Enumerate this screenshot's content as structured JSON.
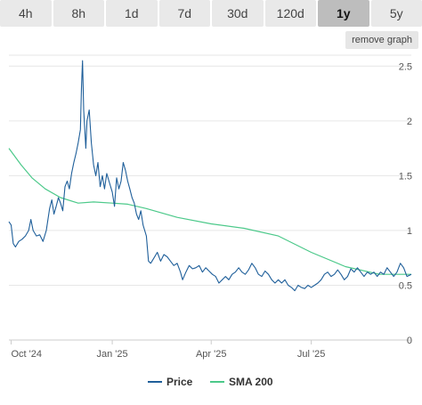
{
  "tabs": [
    {
      "label": "4h",
      "active": false
    },
    {
      "label": "8h",
      "active": false
    },
    {
      "label": "1d",
      "active": false
    },
    {
      "label": "7d",
      "active": false
    },
    {
      "label": "30d",
      "active": false
    },
    {
      "label": "120d",
      "active": false
    },
    {
      "label": "1y",
      "active": true
    },
    {
      "label": "5y",
      "active": false
    }
  ],
  "remove_graph_label": "remove graph",
  "chart_data": {
    "type": "line",
    "xlim": [
      "2024-09-29",
      "2025-09-30"
    ],
    "ylim": [
      0,
      2.6
    ],
    "y_ticks": [
      0,
      0.5,
      1,
      1.5,
      2,
      2.5
    ],
    "y_tick_labels": [
      "0",
      "0.5",
      "1",
      "1.5",
      "2",
      "2.5"
    ],
    "x_ticks": [
      {
        "date": "2024-10-01",
        "label": "Oct '24"
      },
      {
        "date": "2025-01-01",
        "label": "Jan '25"
      },
      {
        "date": "2025-04-01",
        "label": "Apr '25"
      },
      {
        "date": "2025-07-01",
        "label": "Jul '25"
      }
    ],
    "grid": true,
    "legend_position": "bottom-center",
    "series": [
      {
        "name": "Price",
        "color": "#1f5f9a",
        "points": [
          [
            "2024-09-29",
            1.08
          ],
          [
            "2024-10-01",
            1.05
          ],
          [
            "2024-10-03",
            0.88
          ],
          [
            "2024-10-05",
            0.85
          ],
          [
            "2024-10-08",
            0.9
          ],
          [
            "2024-10-11",
            0.92
          ],
          [
            "2024-10-14",
            0.95
          ],
          [
            "2024-10-17",
            1.0
          ],
          [
            "2024-10-19",
            1.1
          ],
          [
            "2024-10-21",
            1.0
          ],
          [
            "2024-10-24",
            0.95
          ],
          [
            "2024-10-27",
            0.96
          ],
          [
            "2024-10-30",
            0.9
          ],
          [
            "2024-11-02",
            1.0
          ],
          [
            "2024-11-05",
            1.2
          ],
          [
            "2024-11-07",
            1.28
          ],
          [
            "2024-11-09",
            1.15
          ],
          [
            "2024-11-11",
            1.22
          ],
          [
            "2024-11-13",
            1.3
          ],
          [
            "2024-11-15",
            1.25
          ],
          [
            "2024-11-17",
            1.18
          ],
          [
            "2024-11-19",
            1.4
          ],
          [
            "2024-11-21",
            1.45
          ],
          [
            "2024-11-23",
            1.38
          ],
          [
            "2024-11-25",
            1.52
          ],
          [
            "2024-11-27",
            1.62
          ],
          [
            "2024-11-29",
            1.7
          ],
          [
            "2024-12-01",
            1.8
          ],
          [
            "2024-12-03",
            1.92
          ],
          [
            "2024-12-04",
            2.3
          ],
          [
            "2024-12-05",
            2.55
          ],
          [
            "2024-12-06",
            2.1
          ],
          [
            "2024-12-08",
            1.75
          ],
          [
            "2024-12-09",
            2.0
          ],
          [
            "2024-12-11",
            2.1
          ],
          [
            "2024-12-13",
            1.8
          ],
          [
            "2024-12-15",
            1.6
          ],
          [
            "2024-12-17",
            1.5
          ],
          [
            "2024-12-19",
            1.62
          ],
          [
            "2024-12-21",
            1.4
          ],
          [
            "2024-12-23",
            1.5
          ],
          [
            "2024-12-25",
            1.38
          ],
          [
            "2024-12-27",
            1.52
          ],
          [
            "2024-12-29",
            1.45
          ],
          [
            "2025-01-01",
            1.35
          ],
          [
            "2025-01-03",
            1.22
          ],
          [
            "2025-01-05",
            1.48
          ],
          [
            "2025-01-07",
            1.38
          ],
          [
            "2025-01-09",
            1.45
          ],
          [
            "2025-01-11",
            1.62
          ],
          [
            "2025-01-13",
            1.55
          ],
          [
            "2025-01-15",
            1.45
          ],
          [
            "2025-01-17",
            1.38
          ],
          [
            "2025-01-19",
            1.3
          ],
          [
            "2025-01-21",
            1.25
          ],
          [
            "2025-01-23",
            1.15
          ],
          [
            "2025-01-25",
            1.1
          ],
          [
            "2025-01-27",
            1.18
          ],
          [
            "2025-01-29",
            1.05
          ],
          [
            "2025-02-01",
            0.95
          ],
          [
            "2025-02-03",
            0.72
          ],
          [
            "2025-02-05",
            0.7
          ],
          [
            "2025-02-08",
            0.75
          ],
          [
            "2025-02-11",
            0.8
          ],
          [
            "2025-02-14",
            0.72
          ],
          [
            "2025-02-17",
            0.78
          ],
          [
            "2025-02-20",
            0.76
          ],
          [
            "2025-02-23",
            0.72
          ],
          [
            "2025-02-26",
            0.68
          ],
          [
            "2025-03-01",
            0.7
          ],
          [
            "2025-03-04",
            0.62
          ],
          [
            "2025-03-06",
            0.55
          ],
          [
            "2025-03-09",
            0.62
          ],
          [
            "2025-03-12",
            0.68
          ],
          [
            "2025-03-15",
            0.65
          ],
          [
            "2025-03-18",
            0.66
          ],
          [
            "2025-03-21",
            0.68
          ],
          [
            "2025-03-24",
            0.62
          ],
          [
            "2025-03-27",
            0.66
          ],
          [
            "2025-03-30",
            0.63
          ],
          [
            "2025-04-02",
            0.6
          ],
          [
            "2025-04-05",
            0.58
          ],
          [
            "2025-04-08",
            0.52
          ],
          [
            "2025-04-11",
            0.55
          ],
          [
            "2025-04-14",
            0.58
          ],
          [
            "2025-04-17",
            0.55
          ],
          [
            "2025-04-20",
            0.6
          ],
          [
            "2025-04-23",
            0.62
          ],
          [
            "2025-04-26",
            0.66
          ],
          [
            "2025-04-29",
            0.62
          ],
          [
            "2025-05-02",
            0.6
          ],
          [
            "2025-05-05",
            0.64
          ],
          [
            "2025-05-08",
            0.7
          ],
          [
            "2025-05-11",
            0.66
          ],
          [
            "2025-05-14",
            0.6
          ],
          [
            "2025-05-17",
            0.58
          ],
          [
            "2025-05-20",
            0.63
          ],
          [
            "2025-05-23",
            0.6
          ],
          [
            "2025-05-26",
            0.55
          ],
          [
            "2025-05-29",
            0.52
          ],
          [
            "2025-06-01",
            0.55
          ],
          [
            "2025-06-04",
            0.52
          ],
          [
            "2025-06-07",
            0.55
          ],
          [
            "2025-06-10",
            0.5
          ],
          [
            "2025-06-13",
            0.48
          ],
          [
            "2025-06-16",
            0.45
          ],
          [
            "2025-06-19",
            0.5
          ],
          [
            "2025-06-22",
            0.48
          ],
          [
            "2025-06-25",
            0.47
          ],
          [
            "2025-06-28",
            0.5
          ],
          [
            "2025-07-01",
            0.48
          ],
          [
            "2025-07-04",
            0.5
          ],
          [
            "2025-07-07",
            0.52
          ],
          [
            "2025-07-10",
            0.55
          ],
          [
            "2025-07-13",
            0.6
          ],
          [
            "2025-07-16",
            0.62
          ],
          [
            "2025-07-19",
            0.58
          ],
          [
            "2025-07-22",
            0.6
          ],
          [
            "2025-07-25",
            0.64
          ],
          [
            "2025-07-28",
            0.6
          ],
          [
            "2025-07-31",
            0.55
          ],
          [
            "2025-08-03",
            0.58
          ],
          [
            "2025-08-06",
            0.65
          ],
          [
            "2025-08-09",
            0.62
          ],
          [
            "2025-08-12",
            0.66
          ],
          [
            "2025-08-15",
            0.62
          ],
          [
            "2025-08-18",
            0.58
          ],
          [
            "2025-08-21",
            0.62
          ],
          [
            "2025-08-24",
            0.6
          ],
          [
            "2025-08-27",
            0.62
          ],
          [
            "2025-08-30",
            0.58
          ],
          [
            "2025-09-02",
            0.62
          ],
          [
            "2025-09-05",
            0.6
          ],
          [
            "2025-09-08",
            0.66
          ],
          [
            "2025-09-11",
            0.62
          ],
          [
            "2025-09-14",
            0.58
          ],
          [
            "2025-09-17",
            0.62
          ],
          [
            "2025-09-20",
            0.7
          ],
          [
            "2025-09-23",
            0.66
          ],
          [
            "2025-09-26",
            0.58
          ],
          [
            "2025-09-30",
            0.6
          ]
        ]
      },
      {
        "name": "SMA 200",
        "color": "#4cc98a",
        "points": [
          [
            "2024-09-29",
            1.75
          ],
          [
            "2024-10-10",
            1.6
          ],
          [
            "2024-10-20",
            1.48
          ],
          [
            "2024-11-01",
            1.38
          ],
          [
            "2024-11-15",
            1.3
          ],
          [
            "2024-12-01",
            1.25
          ],
          [
            "2024-12-15",
            1.26
          ],
          [
            "2025-01-01",
            1.25
          ],
          [
            "2025-01-15",
            1.24
          ],
          [
            "2025-02-01",
            1.2
          ],
          [
            "2025-03-01",
            1.12
          ],
          [
            "2025-04-01",
            1.06
          ],
          [
            "2025-05-01",
            1.02
          ],
          [
            "2025-06-01",
            0.95
          ],
          [
            "2025-07-01",
            0.8
          ],
          [
            "2025-08-01",
            0.67
          ],
          [
            "2025-09-01",
            0.6
          ],
          [
            "2025-09-30",
            0.6
          ]
        ]
      }
    ]
  }
}
